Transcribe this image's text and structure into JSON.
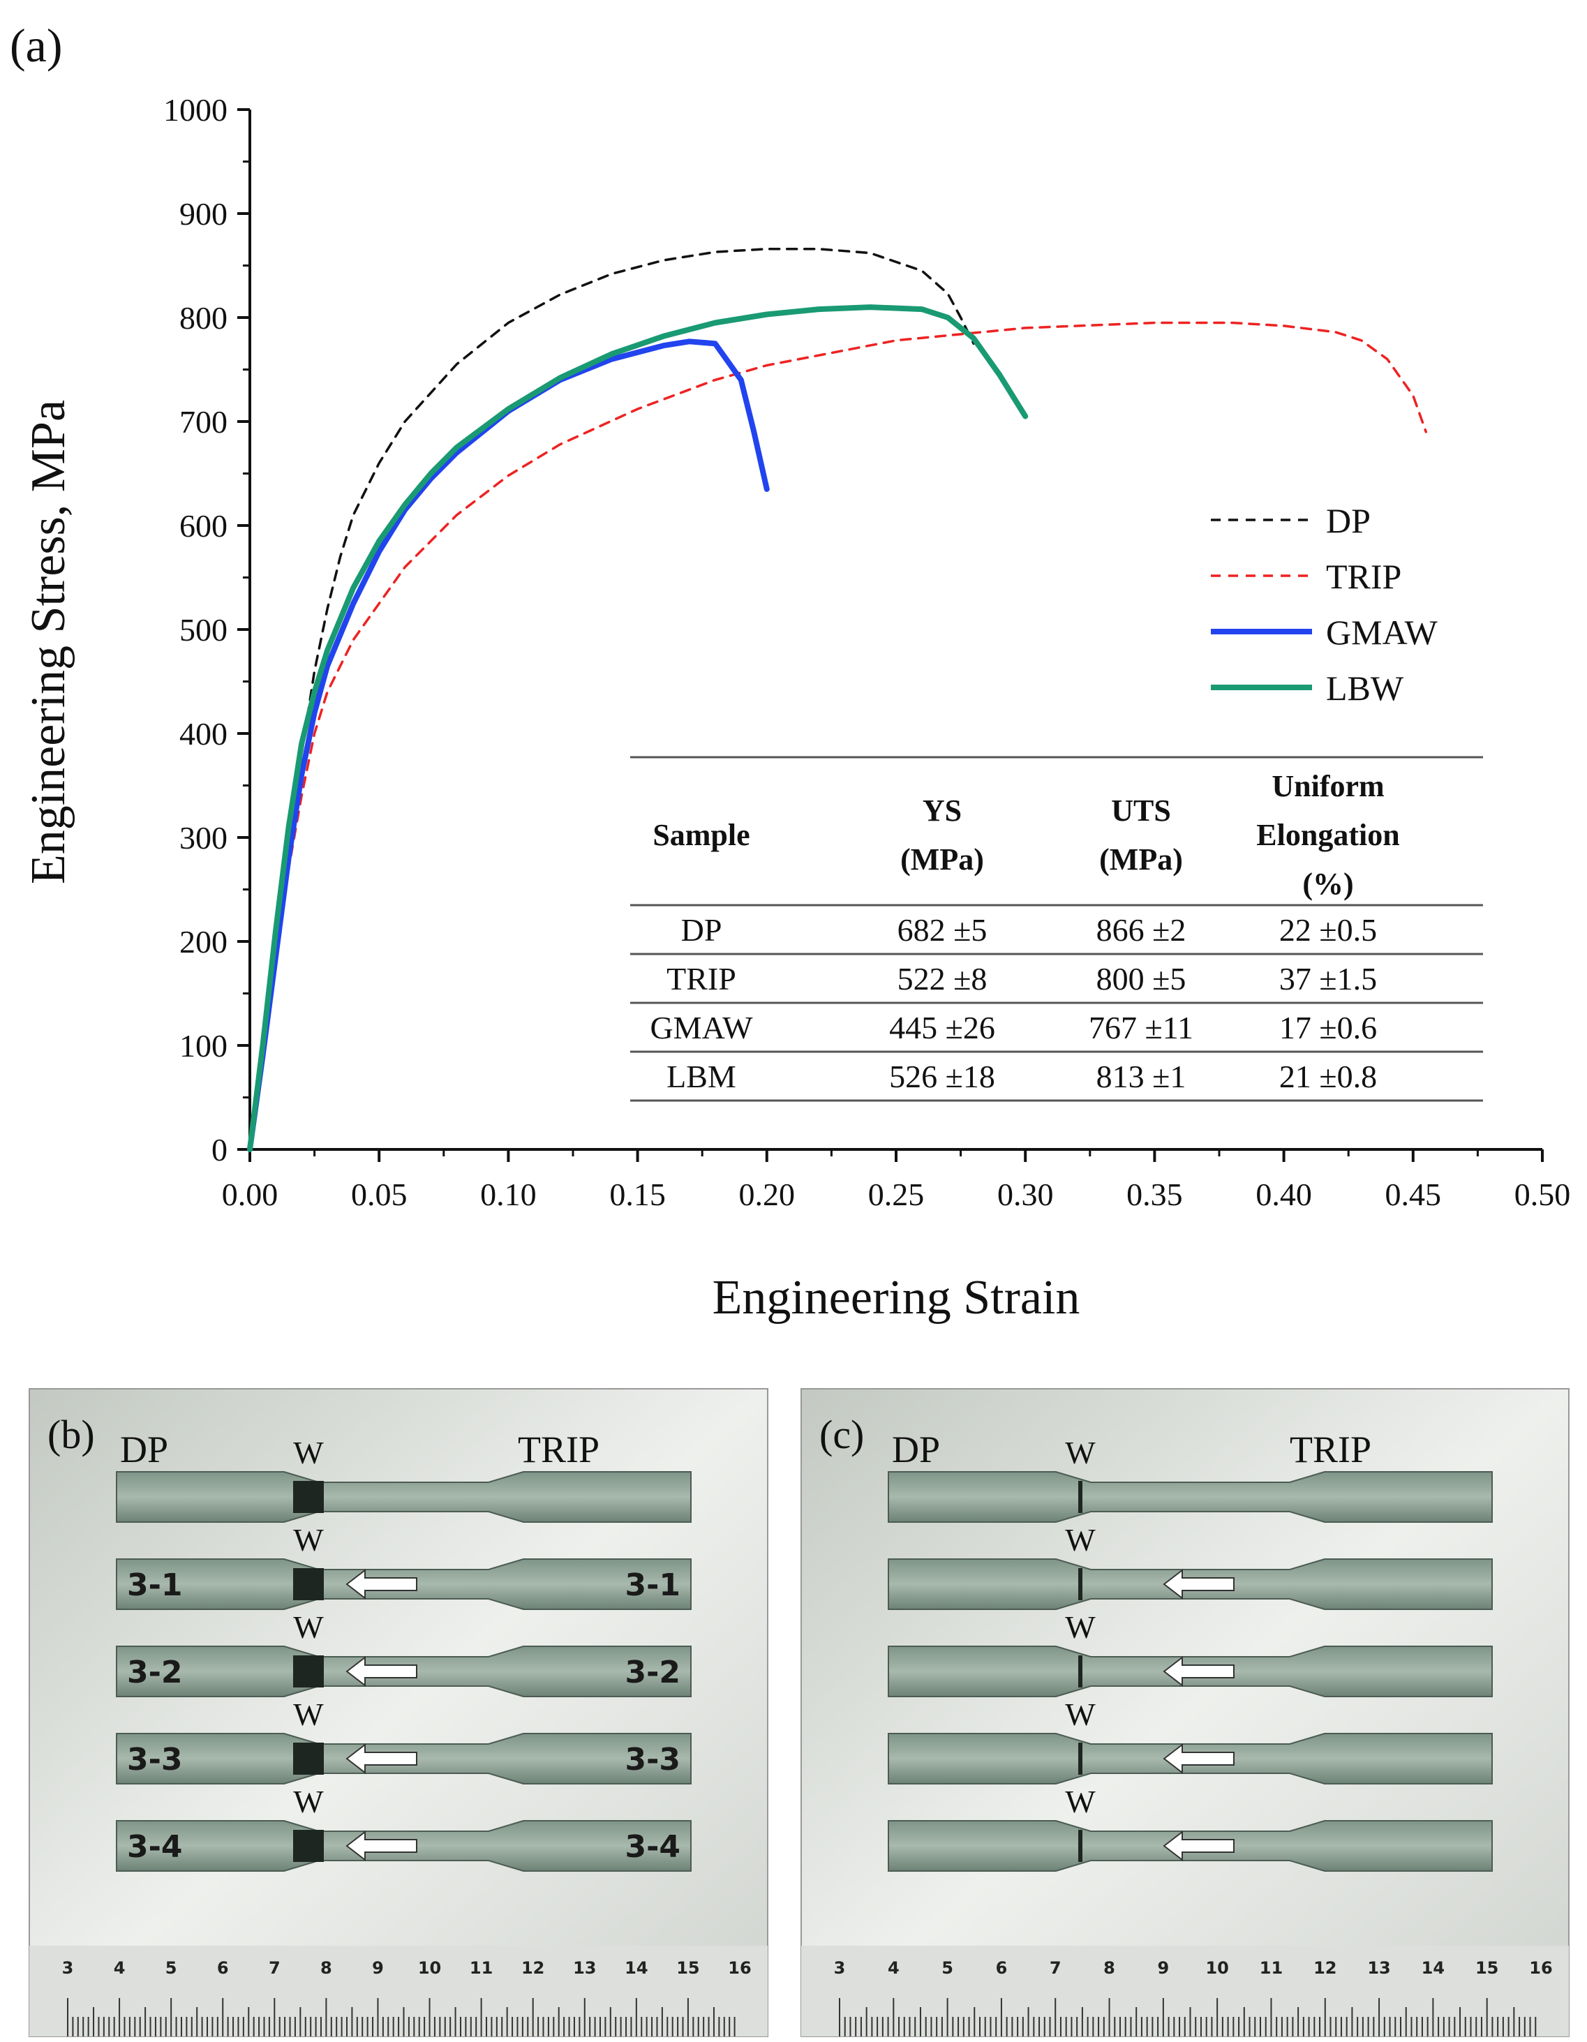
{
  "panel_a_label": "(a)",
  "panel_b_label": "(b)",
  "panel_c_label": "(c)",
  "colors": {
    "DP": "#111111",
    "TRIP": "#ee2222",
    "GMAW": "#2244ee",
    "LBW": "#199a72",
    "arrow": "#ffffff"
  },
  "chart_data": {
    "type": "line",
    "title": "",
    "xlabel": "Engineering Strain",
    "ylabel": "Engineering Stress, MPa",
    "xlim": [
      0,
      0.5
    ],
    "ylim": [
      0,
      1000
    ],
    "xticks": [
      "0.00",
      "0.05",
      "0.10",
      "0.15",
      "0.20",
      "0.25",
      "0.30",
      "0.35",
      "0.40",
      "0.45",
      "0.50"
    ],
    "yticks": [
      "0",
      "100",
      "200",
      "300",
      "400",
      "500",
      "600",
      "700",
      "800",
      "900",
      "1000"
    ],
    "legend_position": "right",
    "series": [
      {
        "name": "DP",
        "style": "dashed",
        "points": [
          [
            0,
            0
          ],
          [
            0.005,
            80
          ],
          [
            0.01,
            180
          ],
          [
            0.015,
            290
          ],
          [
            0.02,
            380
          ],
          [
            0.025,
            460
          ],
          [
            0.03,
            520
          ],
          [
            0.035,
            570
          ],
          [
            0.04,
            610
          ],
          [
            0.05,
            660
          ],
          [
            0.06,
            700
          ],
          [
            0.08,
            755
          ],
          [
            0.1,
            795
          ],
          [
            0.12,
            822
          ],
          [
            0.14,
            842
          ],
          [
            0.16,
            855
          ],
          [
            0.18,
            863
          ],
          [
            0.2,
            866
          ],
          [
            0.22,
            866
          ],
          [
            0.24,
            862
          ],
          [
            0.26,
            845
          ],
          [
            0.27,
            823
          ],
          [
            0.275,
            800
          ],
          [
            0.28,
            775
          ]
        ]
      },
      {
        "name": "TRIP",
        "style": "dashed",
        "points": [
          [
            0,
            0
          ],
          [
            0.005,
            90
          ],
          [
            0.01,
            180
          ],
          [
            0.015,
            270
          ],
          [
            0.02,
            340
          ],
          [
            0.025,
            400
          ],
          [
            0.03,
            440
          ],
          [
            0.04,
            490
          ],
          [
            0.06,
            560
          ],
          [
            0.08,
            610
          ],
          [
            0.1,
            648
          ],
          [
            0.12,
            678
          ],
          [
            0.15,
            712
          ],
          [
            0.18,
            740
          ],
          [
            0.2,
            754
          ],
          [
            0.25,
            778
          ],
          [
            0.3,
            790
          ],
          [
            0.35,
            795
          ],
          [
            0.38,
            795
          ],
          [
            0.4,
            792
          ],
          [
            0.42,
            786
          ],
          [
            0.43,
            778
          ],
          [
            0.44,
            760
          ],
          [
            0.45,
            725
          ],
          [
            0.455,
            690
          ]
        ]
      },
      {
        "name": "GMAW",
        "style": "solid",
        "points": [
          [
            0,
            0
          ],
          [
            0.005,
            90
          ],
          [
            0.01,
            185
          ],
          [
            0.015,
            280
          ],
          [
            0.02,
            360
          ],
          [
            0.025,
            420
          ],
          [
            0.03,
            465
          ],
          [
            0.04,
            525
          ],
          [
            0.05,
            575
          ],
          [
            0.06,
            615
          ],
          [
            0.07,
            645
          ],
          [
            0.08,
            670
          ],
          [
            0.1,
            710
          ],
          [
            0.12,
            740
          ],
          [
            0.14,
            760
          ],
          [
            0.16,
            773
          ],
          [
            0.17,
            777
          ],
          [
            0.18,
            775
          ],
          [
            0.19,
            740
          ],
          [
            0.195,
            690
          ],
          [
            0.2,
            635
          ]
        ]
      },
      {
        "name": "LBW",
        "style": "solid",
        "points": [
          [
            0,
            0
          ],
          [
            0.005,
            100
          ],
          [
            0.01,
            210
          ],
          [
            0.015,
            310
          ],
          [
            0.02,
            390
          ],
          [
            0.025,
            440
          ],
          [
            0.03,
            480
          ],
          [
            0.04,
            540
          ],
          [
            0.05,
            585
          ],
          [
            0.06,
            620
          ],
          [
            0.07,
            650
          ],
          [
            0.08,
            675
          ],
          [
            0.1,
            712
          ],
          [
            0.12,
            742
          ],
          [
            0.14,
            765
          ],
          [
            0.16,
            782
          ],
          [
            0.18,
            795
          ],
          [
            0.2,
            803
          ],
          [
            0.22,
            808
          ],
          [
            0.24,
            810
          ],
          [
            0.26,
            808
          ],
          [
            0.27,
            800
          ],
          [
            0.28,
            780
          ],
          [
            0.29,
            745
          ],
          [
            0.3,
            705
          ]
        ]
      }
    ],
    "table": {
      "headers": [
        [
          "Sample"
        ],
        [
          "YS",
          "(MPa)"
        ],
        [
          "UTS",
          "(MPa)"
        ],
        [
          "Uniform",
          "Elongation",
          "(%)"
        ]
      ],
      "rows": [
        [
          "DP",
          "682 ±5",
          "866 ±2",
          "22 ±0.5"
        ],
        [
          "TRIP",
          "522 ±8",
          "800 ±5",
          "37 ±1.5"
        ],
        [
          "GMAW",
          "445 ±26",
          "767 ±11",
          "17 ±0.6"
        ],
        [
          "LBM",
          "526 ±18",
          "813 ±1",
          "21 ±0.8"
        ]
      ]
    }
  },
  "photos": {
    "b": {
      "dp_label": "DP",
      "trip_label": "TRIP",
      "weld_label": "W",
      "specimens": [
        {
          "left": "",
          "right": ""
        },
        {
          "left": "3-1",
          "right": "3-1"
        },
        {
          "left": "3-2",
          "right": "3-2"
        },
        {
          "left": "3-3",
          "right": "3-3"
        },
        {
          "left": "3-4",
          "right": "3-4"
        }
      ]
    },
    "c": {
      "dp_label": "DP",
      "trip_label": "TRIP",
      "weld_label": "W",
      "specimens": [
        {
          "left": "",
          "right": ""
        },
        {
          "left": "",
          "right": ""
        },
        {
          "left": "",
          "right": ""
        },
        {
          "left": "",
          "right": ""
        },
        {
          "left": "",
          "right": ""
        }
      ]
    },
    "ruler_numbers": [
      "3",
      "4",
      "5",
      "6",
      "7",
      "8",
      "9",
      "10",
      "11",
      "12",
      "13",
      "14",
      "15",
      "16"
    ]
  }
}
